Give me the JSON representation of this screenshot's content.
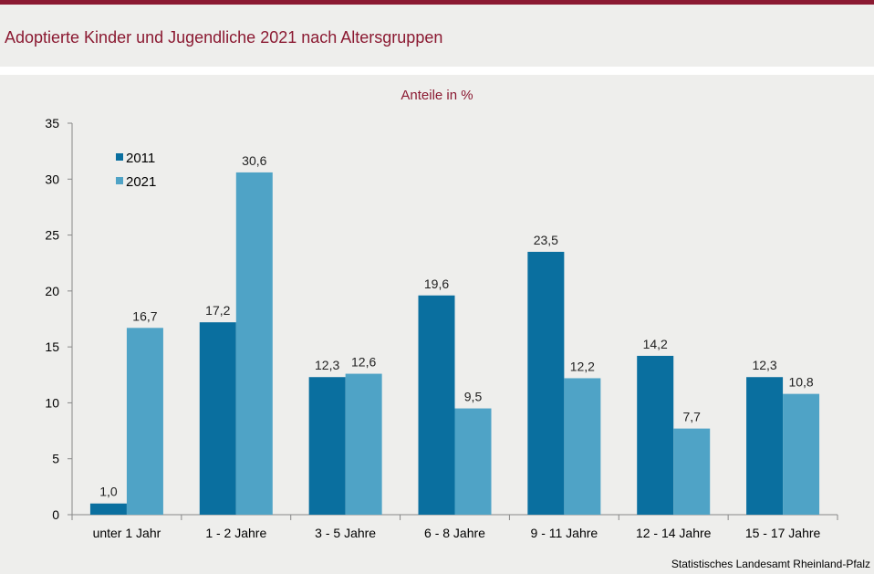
{
  "title": "Adoptierte Kinder und Jugendliche 2021 nach Altersgruppen",
  "source": "Statistisches Landesamt Rheinland-Pfalz",
  "colors": {
    "accent": "#8b1a32",
    "series_2011": "#0a6f9f",
    "series_2021": "#4fa3c6"
  },
  "chart_data": {
    "type": "bar",
    "subtitle": "Anteile in %",
    "categories": [
      "unter 1 Jahr",
      "1 - 2 Jahre",
      "3 - 5 Jahre",
      "6 - 8 Jahre",
      "9 - 11 Jahre",
      "12 - 14 Jahre",
      "15 - 17 Jahre"
    ],
    "series": [
      {
        "name": "2011",
        "values": [
          1.0,
          17.2,
          12.3,
          19.6,
          23.5,
          14.2,
          12.3
        ]
      },
      {
        "name": "2021",
        "values": [
          16.7,
          30.6,
          12.6,
          9.5,
          12.2,
          7.7,
          10.8
        ]
      }
    ],
    "data_labels": [
      [
        "1,0",
        "17,2",
        "12,3",
        "19,6",
        "23,5",
        "14,2",
        "12,3"
      ],
      [
        "16,7",
        "30,6",
        "12,6",
        "9,5",
        "12,2",
        "7,7",
        "10,8"
      ]
    ],
    "yticks": [
      "0",
      "5",
      "10",
      "15",
      "20",
      "25",
      "30",
      "35"
    ],
    "ylim": [
      0,
      35
    ],
    "grid": false,
    "legend_position": "top-left"
  }
}
